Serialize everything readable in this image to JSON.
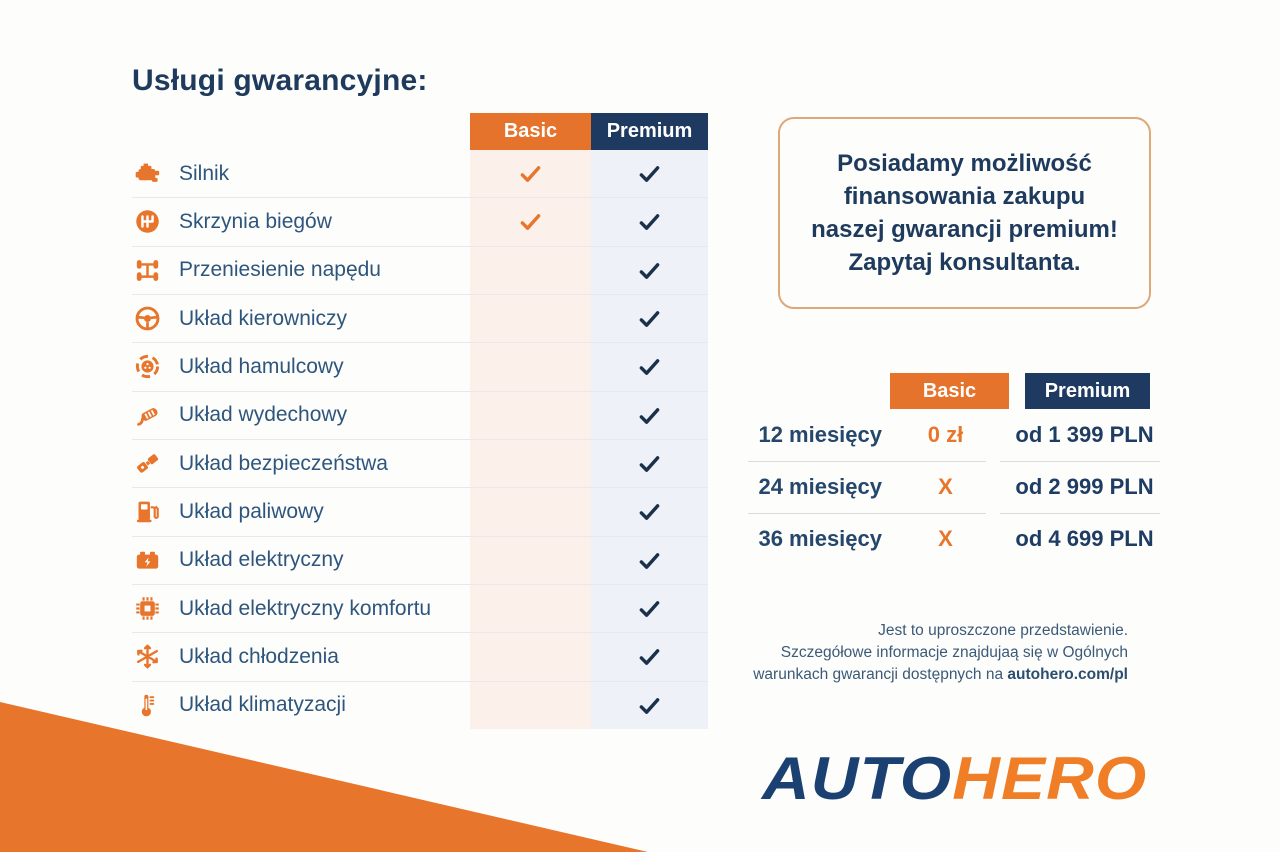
{
  "title": "Usługi gwarancyjne:",
  "warranty_table": {
    "columns": [
      {
        "label": "Basic"
      },
      {
        "label": "Premium"
      }
    ],
    "rows": [
      {
        "icon": "engine-icon",
        "label": "Silnik",
        "basic": true,
        "premium": true
      },
      {
        "icon": "gearbox-icon",
        "label": "Skrzynia biegów",
        "basic": true,
        "premium": true
      },
      {
        "icon": "drivetrain-icon",
        "label": "Przeniesienie napędu",
        "basic": false,
        "premium": true
      },
      {
        "icon": "steering-wheel-icon",
        "label": "Układ kierowniczy",
        "basic": false,
        "premium": true
      },
      {
        "icon": "brake-disc-icon",
        "label": "Układ hamulcowy",
        "basic": false,
        "premium": true
      },
      {
        "icon": "exhaust-icon",
        "label": "Układ wydechowy",
        "basic": false,
        "premium": true
      },
      {
        "icon": "seatbelt-icon",
        "label": "Układ bezpieczeństwa",
        "basic": false,
        "premium": true
      },
      {
        "icon": "fuel-pump-icon",
        "label": "Układ paliwowy",
        "basic": false,
        "premium": true
      },
      {
        "icon": "battery-icon",
        "label": "Układ elektryczny",
        "basic": false,
        "premium": true
      },
      {
        "icon": "chip-icon",
        "label": "Układ elektryczny komfortu",
        "basic": false,
        "premium": true
      },
      {
        "icon": "snowflake-icon",
        "label": "Układ chłodzenia",
        "basic": false,
        "premium": true
      },
      {
        "icon": "thermometer-icon",
        "label": "Układ klimatyzacji",
        "basic": false,
        "premium": true
      }
    ],
    "check_glyph": "✓"
  },
  "financing_note": {
    "lines": [
      "Posiadamy możliwość",
      "finansowania zakupu",
      "naszej gwarancji premium!",
      "Zapytaj konsultanta."
    ]
  },
  "pricing_table": {
    "columns": [
      {
        "label": "Basic"
      },
      {
        "label": "Premium"
      }
    ],
    "rows": [
      {
        "period": "12 miesięcy",
        "basic": "0 zł",
        "premium": "od 1 399 PLN"
      },
      {
        "period": "24 miesięcy",
        "basic": "X",
        "premium": "od 2 999 PLN"
      },
      {
        "period": "36 miesięcy",
        "basic": "X",
        "premium": "od 4 699 PLN"
      }
    ]
  },
  "disclaimer": {
    "line1": "Jest to uproszczone przedstawienie.",
    "line2": "Szczegółowe informacje znajdujaą się w Ogólnych",
    "line3_prefix": "warunkach gwarancji dostępnych na ",
    "line3_bold": "autohero.com/pl"
  },
  "logo": {
    "part1": "AUTO",
    "part2": "HERO"
  },
  "colors": {
    "orange": "#E8752C",
    "basic_header": "#E5732B",
    "premium_header": "#1F3A60",
    "title_navy": "#1E3A5C",
    "label_blue": "#2E567D",
    "basic_check": "#E8752C",
    "premium_check": "#1B3049",
    "basic_column_tint": "#FBF0EA",
    "premium_column_tint": "#EEF2F8",
    "note_border": "#DEA878",
    "logo_navy": "#1B4173",
    "logo_orange": "#F07E26"
  }
}
